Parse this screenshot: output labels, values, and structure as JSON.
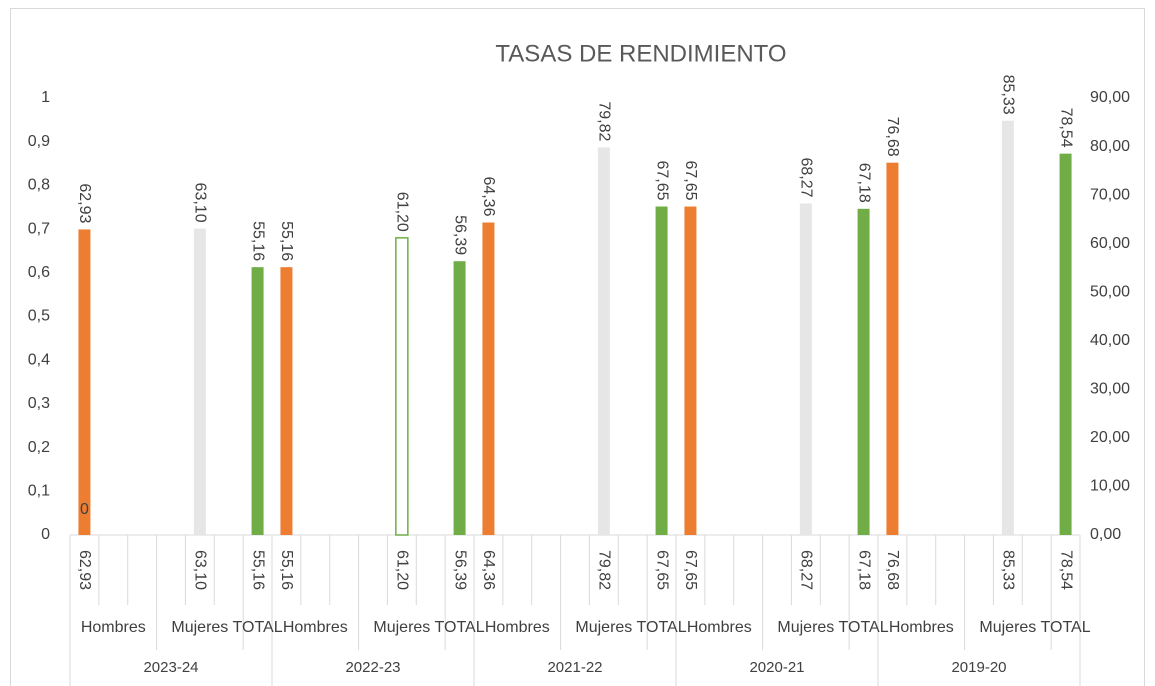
{
  "chart_data": {
    "type": "bar",
    "title": "TASAS DE RENDIMIENTO",
    "categories": [
      "62,93",
      null,
      null,
      null,
      "63,10",
      null,
      "55,16",
      "55,16",
      null,
      null,
      null,
      "61,20",
      null,
      "56,39",
      "64,36",
      null,
      null,
      null,
      "79,82",
      null,
      "67,65",
      "67,65",
      null,
      null,
      null,
      "68,27",
      null,
      "67,18",
      "76,68",
      null,
      null,
      null,
      "85,33",
      null,
      "78,54"
    ],
    "groups": [
      {
        "label": "Hombres",
        "span": 3
      },
      {
        "label": "Mujeres",
        "span": 3
      },
      {
        "label": "TOTAL",
        "span": 1
      },
      {
        "label": "Hombres",
        "span": 3
      },
      {
        "label": "Mujeres",
        "span": 3
      },
      {
        "label": "TOTAL",
        "span": 1
      },
      {
        "label": "Hombres",
        "span": 3
      },
      {
        "label": "Mujeres",
        "span": 3
      },
      {
        "label": "TOTAL",
        "span": 1
      },
      {
        "label": "Hombres",
        "span": 3
      },
      {
        "label": "Mujeres",
        "span": 3
      },
      {
        "label": "TOTAL",
        "span": 1
      },
      {
        "label": "Hombres",
        "span": 3
      },
      {
        "label": "Mujeres",
        "span": 3
      },
      {
        "label": "TOTAL",
        "span": 1
      }
    ],
    "years": [
      "2023-24",
      "2022-23",
      "2021-22",
      "2020-21",
      "2019-20"
    ],
    "series": [
      {
        "axis": "y2",
        "values": [
          62.93,
          null,
          null,
          null,
          63.1,
          null,
          55.16,
          55.16,
          null,
          null,
          null,
          61.2,
          null,
          56.39,
          64.36,
          null,
          null,
          null,
          79.82,
          null,
          67.65,
          67.65,
          null,
          null,
          null,
          68.27,
          null,
          67.18,
          76.68,
          null,
          null,
          null,
          85.33,
          null,
          78.54
        ],
        "value_labels": [
          "62,93",
          null,
          null,
          null,
          "63,10",
          null,
          "55,16",
          "55,16",
          null,
          null,
          null,
          "61,20",
          null,
          "56,39",
          "64,36",
          null,
          null,
          null,
          "79,82",
          null,
          "67,65",
          "67,65",
          null,
          null,
          null,
          "68,27",
          null,
          "67,18",
          "76,68",
          null,
          null,
          null,
          "85,33",
          null,
          "78,54"
        ],
        "colors": [
          "#ed7d31",
          null,
          null,
          null,
          "#e7e6e6",
          null,
          "#70ad47",
          "#ed7d31",
          null,
          null,
          null,
          "#ffffff",
          null,
          "#70ad47",
          "#ed7d31",
          null,
          null,
          null,
          "#e7e6e6",
          null,
          "#70ad47",
          "#ed7d31",
          null,
          null,
          null,
          "#e7e6e6",
          null,
          "#70ad47",
          "#ed7d31",
          null,
          null,
          null,
          "#e7e6e6",
          null,
          "#70ad47"
        ],
        "edge_colors": [
          null,
          null,
          null,
          null,
          null,
          null,
          null,
          null,
          null,
          null,
          null,
          "#70ad47",
          null,
          null,
          null,
          null,
          null,
          null,
          null,
          null,
          null,
          null,
          null,
          null,
          null,
          null,
          null,
          null,
          null,
          null,
          null,
          null,
          null,
          null,
          null
        ]
      },
      {
        "axis": "y",
        "values": [
          0,
          null,
          null,
          null,
          null,
          null,
          null,
          null,
          null,
          null,
          null,
          null,
          null,
          null,
          null,
          null,
          null,
          null,
          null,
          null,
          null,
          null,
          null,
          null,
          null,
          null,
          null,
          null,
          null,
          null,
          null,
          null,
          null,
          null,
          null
        ]
      }
    ],
    "ylim": [
      0,
      1
    ],
    "yticks": [
      0,
      {
        "value": 0.1,
        "label": "0,1"
      },
      {
        "value": 0.2,
        "label": "0,2"
      },
      {
        "value": 0.3,
        "label": "0,3"
      },
      {
        "value": 0.4,
        "label": "0,4"
      },
      {
        "value": 0.5,
        "label": "0,5"
      },
      {
        "value": 0.6,
        "label": "0,6"
      },
      {
        "value": 0.7,
        "label": "0,7"
      },
      {
        "value": 0.8,
        "label": "0,8"
      },
      {
        "value": 0.9,
        "label": "0,9"
      },
      1
    ],
    "y2lim": [
      0,
      90
    ],
    "y2ticks": [
      {
        "value": 0,
        "label": "0,00"
      },
      {
        "value": 10,
        "label": "10,00"
      },
      {
        "value": 20,
        "label": "20,00"
      },
      {
        "value": 30,
        "label": "30,00"
      },
      {
        "value": 40,
        "label": "40,00"
      },
      {
        "value": 50,
        "label": "50,00"
      },
      {
        "value": 60,
        "label": "60,00"
      },
      {
        "value": 70,
        "label": "70,00"
      },
      {
        "value": 80,
        "label": "80,00"
      },
      {
        "value": 90,
        "label": "90,00"
      }
    ],
    "grid": false
  }
}
